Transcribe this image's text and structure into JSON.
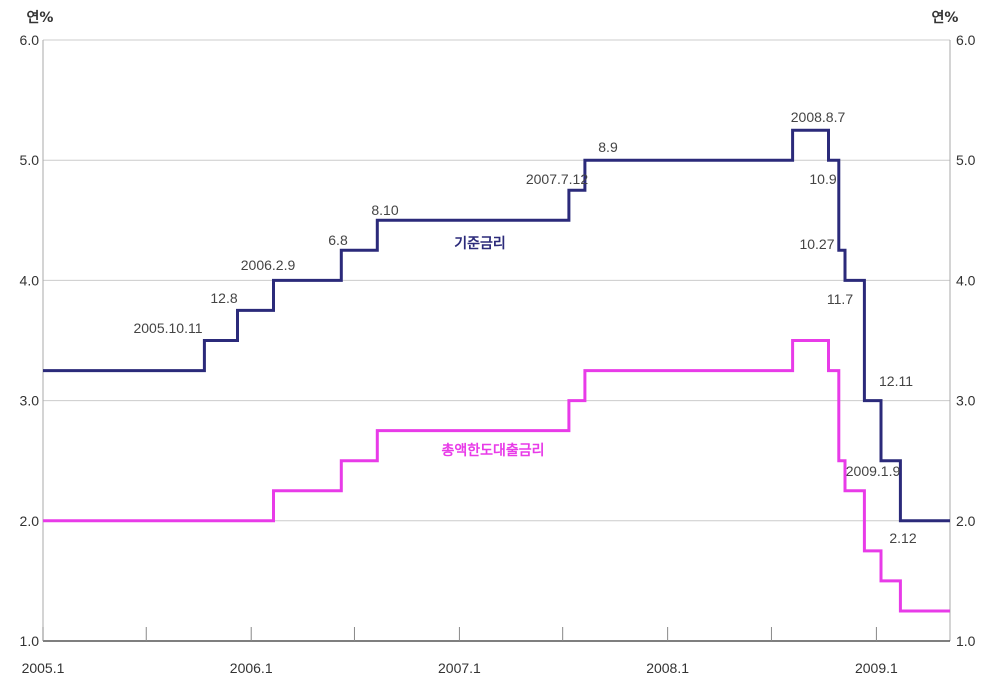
{
  "chart_data": {
    "type": "line",
    "y_unit_left": "연%",
    "y_unit_right": "연%",
    "ylim": [
      1.0,
      6.0
    ],
    "y_ticks": [
      "1.0",
      "2.0",
      "3.0",
      "4.0",
      "5.0",
      "6.0"
    ],
    "x_range": [
      "2005-01-01",
      "2009-05-10"
    ],
    "x_ticks": [
      {
        "date": "2005-01-01",
        "label": "2005.1"
      },
      {
        "date": "2006-01-01",
        "label": "2006.1"
      },
      {
        "date": "2007-01-01",
        "label": "2007.1"
      },
      {
        "date": "2008-01-01",
        "label": "2008.1"
      },
      {
        "date": "2009-01-01",
        "label": "2009.1"
      }
    ],
    "x_minor_ticks": [
      "2005-07-01",
      "2006-07-01",
      "2007-07-01",
      "2008-07-01"
    ],
    "grid": true,
    "series": [
      {
        "name": "기준금리",
        "color": "#2b2a7a",
        "steps": [
          {
            "date": "2005-01-01",
            "value": 3.25
          },
          {
            "date": "2005-10-11",
            "value": 3.5
          },
          {
            "date": "2005-12-08",
            "value": 3.75
          },
          {
            "date": "2006-02-09",
            "value": 4.0
          },
          {
            "date": "2006-06-08",
            "value": 4.25
          },
          {
            "date": "2006-08-10",
            "value": 4.5
          },
          {
            "date": "2007-07-12",
            "value": 4.75
          },
          {
            "date": "2007-08-09",
            "value": 5.0
          },
          {
            "date": "2008-08-07",
            "value": 5.25
          },
          {
            "date": "2008-10-09",
            "value": 5.0
          },
          {
            "date": "2008-10-27",
            "value": 4.25
          },
          {
            "date": "2008-11-07",
            "value": 4.0
          },
          {
            "date": "2008-12-11",
            "value": 3.0
          },
          {
            "date": "2009-01-09",
            "value": 2.5
          },
          {
            "date": "2009-02-12",
            "value": 2.0
          }
        ],
        "end_date": "2009-05-10"
      },
      {
        "name": "총액한도대출금리",
        "color": "#e83be8",
        "steps": [
          {
            "date": "2005-01-01",
            "value": 2.0
          },
          {
            "date": "2006-02-09",
            "value": 2.25
          },
          {
            "date": "2006-06-08",
            "value": 2.5
          },
          {
            "date": "2006-08-10",
            "value": 2.75
          },
          {
            "date": "2007-07-12",
            "value": 3.0
          },
          {
            "date": "2007-08-09",
            "value": 3.25
          },
          {
            "date": "2008-08-07",
            "value": 3.5
          },
          {
            "date": "2008-10-09",
            "value": 3.25
          },
          {
            "date": "2008-10-27",
            "value": 2.5
          },
          {
            "date": "2008-11-07",
            "value": 2.25
          },
          {
            "date": "2008-12-11",
            "value": 1.75
          },
          {
            "date": "2009-01-09",
            "value": 1.5
          },
          {
            "date": "2009-02-12",
            "value": 1.25
          }
        ],
        "end_date": "2009-05-10"
      }
    ],
    "annotations": [
      "2005.10.11",
      "12.8",
      "2006.2.9",
      "6.8",
      "8.10",
      "2007.7.12",
      "8.9",
      "2008.8.7",
      "10.9",
      "10.27",
      "11.7",
      "12.11",
      "2009.1.9",
      "2.12"
    ]
  }
}
